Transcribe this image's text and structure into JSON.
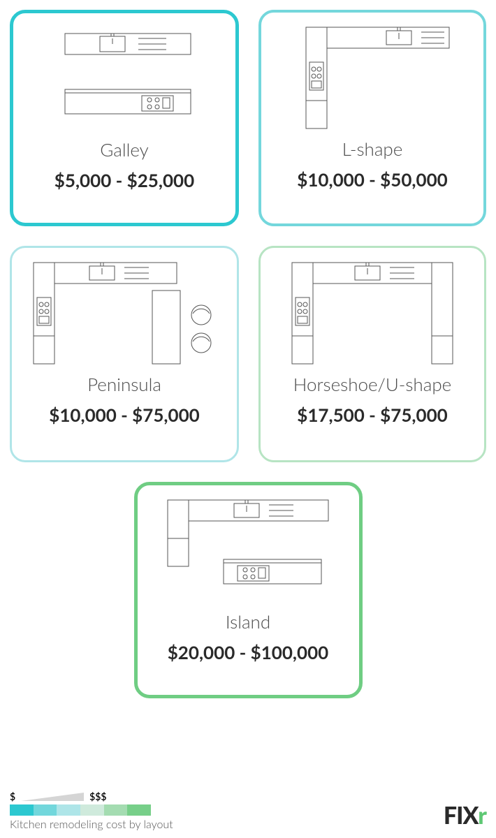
{
  "caption": "Kitchen remodeling cost by layout",
  "legend": {
    "low": "$",
    "high": "$$$"
  },
  "gradient_colors": [
    "#2cc8d0",
    "#72d7dc",
    "#aee5e8",
    "#cfeadc",
    "#a4dcb1",
    "#77cf89"
  ],
  "logo": {
    "text": "FIX",
    "accent": "r"
  },
  "cards": [
    {
      "key": "galley",
      "label": "Galley",
      "price": "$5,000 - $25,000",
      "border_color": "#2cc8d0",
      "border_width": 5
    },
    {
      "key": "lshape",
      "label": "L-shape",
      "price": "$10,000 - $50,000",
      "border_color": "#74d7dc",
      "border_width": 4
    },
    {
      "key": "peninsula",
      "label": "Peninsula",
      "price": "$10,000 - $75,000",
      "border_color": "#b0e5e8",
      "border_width": 3
    },
    {
      "key": "horseshoe",
      "label": "Horseshoe/U-shape",
      "price": "$17,500 - $75,000",
      "border_color": "#b7e4c3",
      "border_width": 3
    },
    {
      "key": "island",
      "label": "Island",
      "price": "$20,000 - $100,000",
      "border_color": "#6fcd83",
      "border_width": 5
    }
  ]
}
